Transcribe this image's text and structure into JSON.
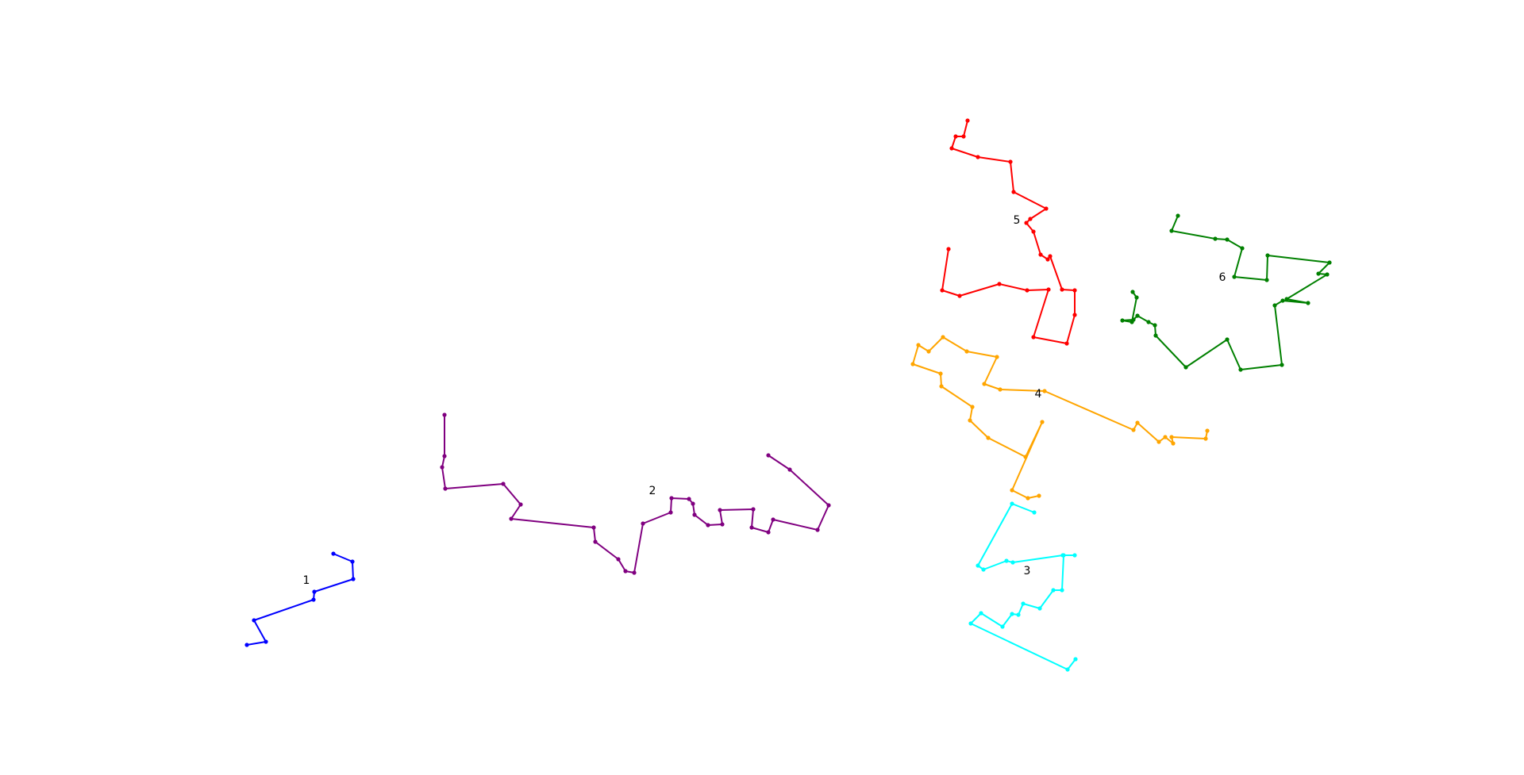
{
  "chart_data": {
    "type": "line",
    "title": "",
    "xlabel": "",
    "ylabel": "",
    "axes_visible": false,
    "grid": false,
    "markers": true,
    "xlim": [
      0,
      1920
    ],
    "ylim": [
      977,
      0
    ],
    "series": [
      {
        "label": "1",
        "color": "#0000ff",
        "label_at": [
          386,
          732
        ],
        "points": [
          [
            420,
            698
          ],
          [
            444,
            708
          ],
          [
            445,
            730
          ],
          [
            396,
            746
          ],
          [
            395,
            756
          ],
          [
            320,
            782
          ],
          [
            335,
            809
          ],
          [
            311,
            813
          ]
        ]
      },
      {
        "label": "2",
        "color": "#800080",
        "label_at": [
          822,
          619
        ],
        "points": [
          [
            560,
            523
          ],
          [
            560,
            575
          ],
          [
            557,
            589
          ],
          [
            561,
            616
          ],
          [
            634,
            610
          ],
          [
            656,
            636
          ],
          [
            644,
            654
          ],
          [
            748,
            665
          ],
          [
            750,
            683
          ],
          [
            779,
            705
          ],
          [
            788,
            720
          ],
          [
            799,
            722
          ],
          [
            810,
            660
          ],
          [
            845,
            646
          ],
          [
            846,
            628
          ],
          [
            868,
            629
          ],
          [
            873,
            635
          ],
          [
            875,
            649
          ],
          [
            892,
            662
          ],
          [
            910,
            661
          ],
          [
            907,
            643
          ],
          [
            949,
            642
          ],
          [
            947,
            665
          ],
          [
            968,
            671
          ],
          [
            974,
            655
          ],
          [
            1030,
            668
          ],
          [
            1044,
            637
          ],
          [
            995,
            592
          ],
          [
            968,
            574
          ]
        ]
      },
      {
        "label": "3",
        "color": "#00ffff",
        "label_at": [
          1294,
          720
        ],
        "points": [
          [
            1303,
            646
          ],
          [
            1275,
            635
          ],
          [
            1232,
            713
          ],
          [
            1239,
            718
          ],
          [
            1268,
            707
          ],
          [
            1276,
            709
          ],
          [
            1339,
            700
          ],
          [
            1354,
            700
          ],
          [
            1340,
            700
          ],
          [
            1338,
            744
          ],
          [
            1327,
            744
          ],
          [
            1310,
            767
          ],
          [
            1289,
            761
          ],
          [
            1283,
            775
          ],
          [
            1275,
            774
          ],
          [
            1263,
            790
          ],
          [
            1236,
            773
          ],
          [
            1223,
            786
          ],
          [
            1345,
            844
          ],
          [
            1355,
            831
          ]
        ]
      },
      {
        "label": "4",
        "color": "#ffa500",
        "label_at": [
          1308,
          497
        ],
        "points": [
          [
            1309,
            625
          ],
          [
            1295,
            628
          ],
          [
            1275,
            618
          ],
          [
            1313,
            532
          ],
          [
            1292,
            576
          ],
          [
            1245,
            552
          ],
          [
            1222,
            530
          ],
          [
            1225,
            513
          ],
          [
            1186,
            487
          ],
          [
            1185,
            471
          ],
          [
            1150,
            459
          ],
          [
            1157,
            435
          ],
          [
            1170,
            443
          ],
          [
            1188,
            425
          ],
          [
            1218,
            443
          ],
          [
            1256,
            450
          ],
          [
            1240,
            484
          ],
          [
            1260,
            491
          ],
          [
            1316,
            493
          ],
          [
            1428,
            542
          ],
          [
            1433,
            533
          ],
          [
            1460,
            557
          ],
          [
            1468,
            551
          ],
          [
            1478,
            559
          ],
          [
            1476,
            551
          ],
          [
            1519,
            553
          ],
          [
            1521,
            543
          ]
        ]
      },
      {
        "label": "5",
        "color": "#ff0000",
        "label_at": [
          1281,
          278
        ],
        "points": [
          [
            1219,
            152
          ],
          [
            1214,
            172
          ],
          [
            1204,
            172
          ],
          [
            1199,
            187
          ],
          [
            1232,
            198
          ],
          [
            1273,
            204
          ],
          [
            1277,
            242
          ],
          [
            1318,
            263
          ],
          [
            1298,
            276
          ],
          [
            1293,
            281
          ],
          [
            1302,
            292
          ],
          [
            1311,
            321
          ],
          [
            1320,
            327
          ],
          [
            1323,
            323
          ],
          [
            1338,
            365
          ],
          [
            1354,
            366
          ],
          [
            1354,
            397
          ],
          [
            1344,
            433
          ],
          [
            1302,
            425
          ],
          [
            1321,
            365
          ],
          [
            1294,
            366
          ],
          [
            1259,
            358
          ],
          [
            1209,
            373
          ],
          [
            1187,
            366
          ],
          [
            1195,
            314
          ]
        ]
      },
      {
        "label": "6",
        "color": "#008000",
        "label_at": [
          1540,
          350
        ],
        "points": [
          [
            1484,
            272
          ],
          [
            1476,
            291
          ],
          [
            1531,
            301
          ],
          [
            1546,
            302
          ],
          [
            1565,
            313
          ],
          [
            1555,
            349
          ],
          [
            1596,
            353
          ],
          [
            1597,
            322
          ],
          [
            1675,
            331
          ],
          [
            1661,
            345
          ],
          [
            1672,
            346
          ],
          [
            1621,
            377
          ],
          [
            1648,
            382
          ],
          [
            1616,
            379
          ],
          [
            1606,
            385
          ],
          [
            1615,
            460
          ],
          [
            1563,
            466
          ],
          [
            1546,
            428
          ],
          [
            1494,
            463
          ],
          [
            1456,
            423
          ],
          [
            1455,
            410
          ],
          [
            1447,
            406
          ],
          [
            1433,
            398
          ],
          [
            1428,
            403
          ],
          [
            1414,
            404
          ],
          [
            1426,
            406
          ],
          [
            1432,
            375
          ],
          [
            1427,
            368
          ]
        ]
      }
    ]
  }
}
